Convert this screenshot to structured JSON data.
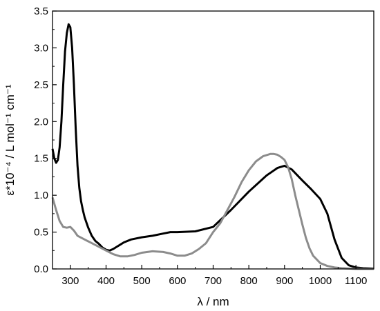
{
  "chart_data": {
    "type": "line",
    "title": "",
    "xlabel": "λ / nm",
    "ylabel": "ε*10⁻⁴ / L mol⁻¹ cm⁻¹",
    "xlim": [
      250,
      1150
    ],
    "ylim": [
      0,
      3.5
    ],
    "x_ticks": [
      300,
      400,
      500,
      600,
      700,
      800,
      900,
      1000,
      1100
    ],
    "y_ticks": [
      0.0,
      0.5,
      1.0,
      1.5,
      2.0,
      2.5,
      3.0,
      3.5
    ],
    "x_tick_labels": [
      "300",
      "400",
      "500",
      "600",
      "700",
      "800",
      "900",
      "1000",
      "1100"
    ],
    "y_tick_labels": [
      "0.0",
      "0.5",
      "1.0",
      "1.5",
      "2.0",
      "2.5",
      "3.0",
      "3.5"
    ],
    "grid": false,
    "legend": "none",
    "series": [
      {
        "color": "#000000",
        "points": [
          [
            250,
            1.63
          ],
          [
            255,
            1.5
          ],
          [
            260,
            1.44
          ],
          [
            265,
            1.48
          ],
          [
            270,
            1.65
          ],
          [
            275,
            2.0
          ],
          [
            280,
            2.5
          ],
          [
            285,
            2.95
          ],
          [
            290,
            3.2
          ],
          [
            295,
            3.32
          ],
          [
            300,
            3.28
          ],
          [
            305,
            3.0
          ],
          [
            310,
            2.5
          ],
          [
            315,
            1.9
          ],
          [
            320,
            1.4
          ],
          [
            325,
            1.1
          ],
          [
            330,
            0.92
          ],
          [
            335,
            0.8
          ],
          [
            340,
            0.7
          ],
          [
            350,
            0.56
          ],
          [
            360,
            0.45
          ],
          [
            370,
            0.38
          ],
          [
            380,
            0.34
          ],
          [
            390,
            0.29
          ],
          [
            400,
            0.26
          ],
          [
            410,
            0.25
          ],
          [
            420,
            0.27
          ],
          [
            430,
            0.3
          ],
          [
            440,
            0.33
          ],
          [
            450,
            0.36
          ],
          [
            470,
            0.4
          ],
          [
            500,
            0.43
          ],
          [
            530,
            0.45
          ],
          [
            560,
            0.48
          ],
          [
            580,
            0.5
          ],
          [
            600,
            0.5
          ],
          [
            650,
            0.51
          ],
          [
            700,
            0.57
          ],
          [
            750,
            0.8
          ],
          [
            800,
            1.05
          ],
          [
            850,
            1.27
          ],
          [
            880,
            1.37
          ],
          [
            900,
            1.4
          ],
          [
            920,
            1.35
          ],
          [
            950,
            1.2
          ],
          [
            975,
            1.08
          ],
          [
            1000,
            0.95
          ],
          [
            1020,
            0.75
          ],
          [
            1040,
            0.4
          ],
          [
            1060,
            0.15
          ],
          [
            1080,
            0.05
          ],
          [
            1100,
            0.02
          ],
          [
            1120,
            0.01
          ],
          [
            1150,
            0.005
          ]
        ]
      },
      {
        "color": "#8c8c8c",
        "points": [
          [
            250,
            0.97
          ],
          [
            260,
            0.8
          ],
          [
            270,
            0.65
          ],
          [
            280,
            0.57
          ],
          [
            290,
            0.56
          ],
          [
            300,
            0.57
          ],
          [
            310,
            0.52
          ],
          [
            320,
            0.45
          ],
          [
            340,
            0.4
          ],
          [
            360,
            0.35
          ],
          [
            380,
            0.3
          ],
          [
            400,
            0.25
          ],
          [
            420,
            0.2
          ],
          [
            440,
            0.17
          ],
          [
            460,
            0.17
          ],
          [
            480,
            0.19
          ],
          [
            500,
            0.22
          ],
          [
            530,
            0.24
          ],
          [
            560,
            0.23
          ],
          [
            580,
            0.21
          ],
          [
            600,
            0.18
          ],
          [
            620,
            0.18
          ],
          [
            640,
            0.21
          ],
          [
            660,
            0.27
          ],
          [
            680,
            0.35
          ],
          [
            700,
            0.5
          ],
          [
            720,
            0.62
          ],
          [
            740,
            0.8
          ],
          [
            760,
            0.98
          ],
          [
            780,
            1.18
          ],
          [
            800,
            1.34
          ],
          [
            820,
            1.46
          ],
          [
            840,
            1.53
          ],
          [
            860,
            1.56
          ],
          [
            870,
            1.56
          ],
          [
            880,
            1.55
          ],
          [
            890,
            1.52
          ],
          [
            900,
            1.48
          ],
          [
            910,
            1.38
          ],
          [
            920,
            1.22
          ],
          [
            930,
            1.0
          ],
          [
            940,
            0.8
          ],
          [
            950,
            0.6
          ],
          [
            960,
            0.42
          ],
          [
            970,
            0.28
          ],
          [
            980,
            0.18
          ],
          [
            1000,
            0.08
          ],
          [
            1020,
            0.04
          ],
          [
            1040,
            0.02
          ],
          [
            1060,
            0.01
          ],
          [
            1100,
            0.0
          ],
          [
            1150,
            0.0
          ]
        ]
      }
    ]
  }
}
